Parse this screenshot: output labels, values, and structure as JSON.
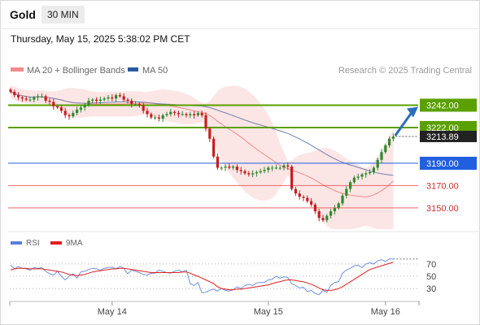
{
  "header": {
    "symbol": "Gold",
    "timeframe": "30 MIN",
    "timestamp": "Thursday, May 15, 2025 5:38:02 PM CET"
  },
  "legend": {
    "items": [
      {
        "label": "MA 20 + Bollinger Bands",
        "color": "#f08c8c"
      },
      {
        "label": "MA 50",
        "color": "#2a5b9c"
      }
    ],
    "credit": "Research © 2025 Trading Central"
  },
  "rsi_legend": {
    "items": [
      {
        "label": "RSI",
        "color": "#5b7fd6"
      },
      {
        "label": "9MA",
        "color": "#e02020"
      }
    ]
  },
  "colors": {
    "resistance": "#5aa000",
    "pivot": "#1f5fe0",
    "support": "#e04848",
    "candle_up": "#2f8a2f",
    "candle_down": "#c81e1e",
    "band_fill": "#fbe1e1",
    "arrow": "#2a6ebd"
  },
  "chart_data": [
    {
      "type": "candlestick",
      "y_range": [
        3131,
        3262
      ],
      "x_tick_labels": [
        "May 14",
        "May 15",
        "May 16"
      ],
      "last_price": "3213.89",
      "levels": [
        {
          "value": 3242.0,
          "label": "3242.00",
          "kind": "resistance"
        },
        {
          "value": 3222.0,
          "label": "3222.00",
          "kind": "resistance"
        },
        {
          "value": 3190.0,
          "label": "3190.00",
          "kind": "pivot"
        },
        {
          "value": 3170.0,
          "label": "3170.00",
          "kind": "support"
        },
        {
          "value": 3150.0,
          "label": "3150.00",
          "kind": "support"
        }
      ],
      "close": [
        3254,
        3251,
        3249,
        3248,
        3247,
        3247,
        3249,
        3250,
        3250,
        3246,
        3245,
        3241,
        3240,
        3237,
        3233,
        3232,
        3235,
        3238,
        3240,
        3242,
        3246,
        3247,
        3246,
        3247,
        3248,
        3249,
        3248,
        3251,
        3250,
        3247,
        3246,
        3243,
        3243,
        3242,
        3237,
        3234,
        3231,
        3231,
        3230,
        3233,
        3234,
        3236,
        3235,
        3234,
        3234,
        3233,
        3234,
        3233,
        3235,
        3233,
        3221,
        3212,
        3196,
        3186,
        3186,
        3187,
        3186,
        3187,
        3184,
        3183,
        3181,
        3180,
        3181,
        3182,
        3183,
        3184,
        3186,
        3186,
        3186,
        3186,
        3188,
        3187,
        3167,
        3163,
        3160,
        3159,
        3156,
        3153,
        3147,
        3141,
        3139,
        3143,
        3147,
        3150,
        3154,
        3161,
        3167,
        3173,
        3177,
        3178,
        3180,
        3181,
        3182,
        3186,
        3193,
        3200,
        3206,
        3212,
        3214
      ]
    },
    {
      "type": "line",
      "name": "RSI",
      "y_ticks": [
        70,
        50,
        30
      ],
      "y_range": [
        13,
        87
      ],
      "series": [
        {
          "name": "RSI",
          "values": [
            68,
            62,
            66,
            63,
            62,
            60,
            64,
            63,
            64,
            58,
            54,
            52,
            58,
            50,
            44,
            50,
            54,
            47,
            57,
            58,
            61,
            63,
            62,
            60,
            63,
            64,
            65,
            62,
            66,
            63,
            54,
            60,
            58,
            56,
            53,
            52,
            55,
            55,
            60,
            58,
            56,
            55,
            58,
            60,
            57,
            60,
            38,
            35,
            40,
            23,
            24,
            27,
            29,
            26,
            30,
            27,
            26,
            28,
            33,
            30,
            35,
            37,
            35,
            39,
            40,
            40,
            44,
            45,
            50,
            47,
            49,
            48,
            38,
            35,
            31,
            32,
            25,
            27,
            22,
            20,
            27,
            24,
            35,
            40,
            41,
            55,
            60,
            63,
            67,
            68,
            64,
            70,
            72,
            70,
            75,
            77,
            74,
            78,
            78
          ]
        },
        {
          "name": "9MA",
          "values": [
            60,
            62,
            63,
            63,
            63,
            62,
            62,
            62,
            62,
            61,
            60,
            59,
            58,
            57,
            55,
            53,
            52,
            51,
            52,
            53,
            55,
            57,
            58,
            59,
            60,
            61,
            62,
            62,
            63,
            63,
            62,
            61,
            60,
            59,
            58,
            57,
            56,
            56,
            56,
            56,
            56,
            56,
            56,
            56,
            57,
            57,
            55,
            52,
            50,
            47,
            44,
            41,
            38,
            33,
            30,
            29,
            28,
            28,
            29,
            29,
            30,
            31,
            32,
            33,
            34,
            35,
            36,
            38,
            40,
            41,
            43,
            44,
            44,
            43,
            42,
            41,
            39,
            37,
            34,
            31,
            28,
            27,
            27,
            28,
            30,
            33,
            37,
            41,
            45,
            49,
            53,
            57,
            61,
            63,
            65,
            67,
            69,
            71,
            73
          ]
        }
      ]
    }
  ]
}
